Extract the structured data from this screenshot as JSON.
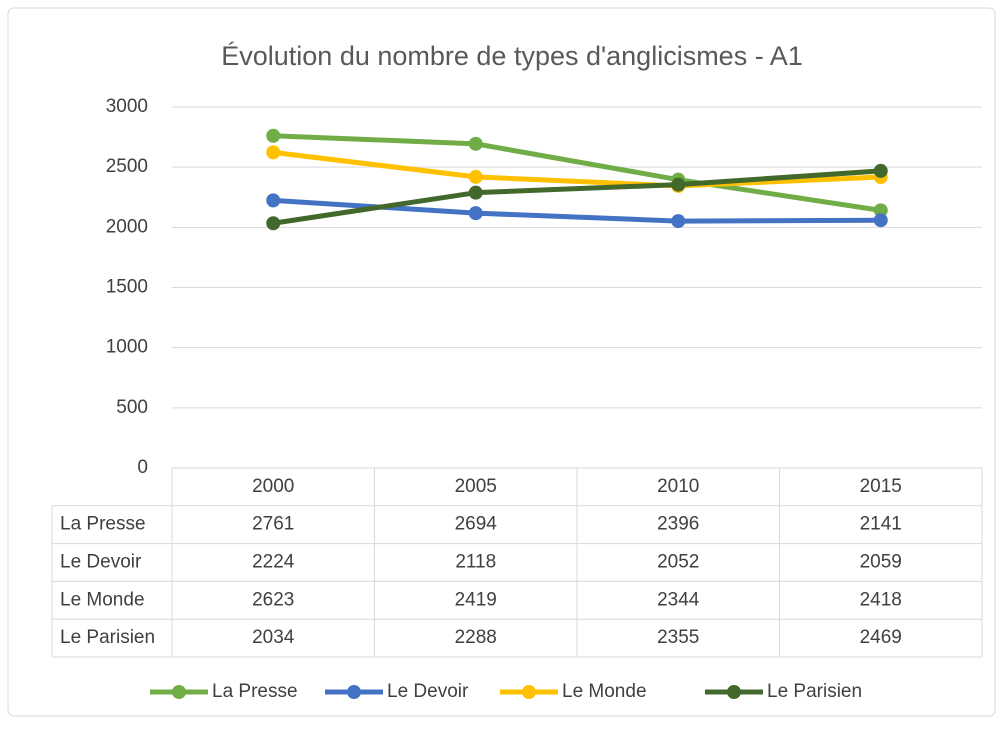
{
  "chart_data": {
    "type": "line",
    "title": "Évolution du nombre de types d'anglicismes - A1",
    "categories": [
      "2000",
      "2005",
      "2010",
      "2015"
    ],
    "series": [
      {
        "name": "La Presse",
        "color": "#70ad47",
        "values": [
          2761,
          2694,
          2396,
          2141
        ]
      },
      {
        "name": "Le Devoir",
        "color": "#4472c4",
        "values": [
          2224,
          2118,
          2052,
          2059
        ]
      },
      {
        "name": "Le Monde",
        "color": "#ffc000",
        "values": [
          2623,
          2419,
          2344,
          2418
        ]
      },
      {
        "name": "Le Parisien",
        "color": "#43682b",
        "values": [
          2034,
          2288,
          2355,
          2469
        ]
      }
    ],
    "ylim": [
      0,
      3000
    ],
    "yticks": [
      0,
      500,
      1000,
      1500,
      2000,
      2500,
      3000
    ],
    "grid": true,
    "legend": "bottom"
  }
}
